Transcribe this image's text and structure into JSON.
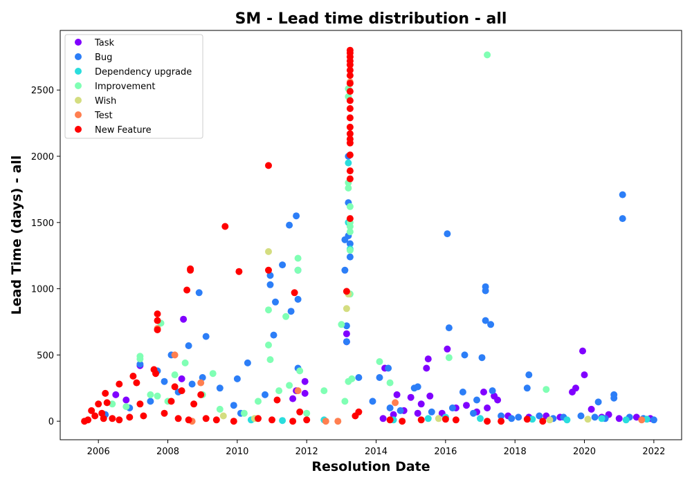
{
  "chart_data": {
    "type": "scatter",
    "title": "SM - Lead time distribution - all",
    "xlabel": "Resolution Date",
    "ylabel": "Lead Time (days) - all",
    "xlim": [
      2004.9,
      2022.8
    ],
    "ylim": [
      -140,
      2950
    ],
    "xticks": [
      2006,
      2008,
      2010,
      2012,
      2014,
      2016,
      2018,
      2020,
      2022
    ],
    "yticks": [
      0,
      500,
      1000,
      1500,
      2000,
      2500
    ],
    "grid": false,
    "legend_position": "top-left",
    "series": [
      {
        "name": "Task",
        "color": "#8000ff",
        "points": [
          [
            2006.5,
            200
          ],
          [
            2006.8,
            160
          ],
          [
            2007.2,
            420
          ],
          [
            2008.4,
            320
          ],
          [
            2008.45,
            770
          ],
          [
            2011.6,
            170
          ],
          [
            2011.7,
            230
          ],
          [
            2011.95,
            300
          ],
          [
            2011.95,
            210
          ],
          [
            2013.15,
            660
          ],
          [
            2013.15,
            600
          ],
          [
            2014.25,
            400
          ],
          [
            2014.6,
            200
          ],
          [
            2015.0,
            180
          ],
          [
            2015.3,
            130
          ],
          [
            2015.45,
            400
          ],
          [
            2015.5,
            470
          ],
          [
            2015.55,
            190
          ],
          [
            2016.05,
            545
          ],
          [
            2016.6,
            120
          ],
          [
            2017.1,
            220
          ],
          [
            2017.4,
            190
          ],
          [
            2017.5,
            160
          ],
          [
            2019.65,
            220
          ],
          [
            2019.75,
            250
          ],
          [
            2019.95,
            530
          ],
          [
            2020.0,
            350
          ],
          [
            2020.2,
            90
          ],
          [
            2014.5,
            50
          ],
          [
            2014.8,
            80
          ],
          [
            2015.9,
            60
          ],
          [
            2016.9,
            70
          ],
          [
            2017.8,
            40
          ],
          [
            2018.4,
            30
          ],
          [
            2018.9,
            40
          ],
          [
            2019.3,
            30
          ],
          [
            2020.5,
            30
          ],
          [
            2021.0,
            20
          ],
          [
            2021.5,
            30
          ],
          [
            2021.9,
            20
          ],
          [
            2016.3,
            100
          ],
          [
            2015.2,
            60
          ],
          [
            2014.2,
            20
          ],
          [
            2017.2,
            100
          ],
          [
            2020.7,
            50
          ]
        ]
      },
      {
        "name": "Bug",
        "color": "#2c7ef7",
        "points": [
          [
            2007.2,
            430
          ],
          [
            2007.7,
            380
          ],
          [
            2008.1,
            500
          ],
          [
            2008.6,
            570
          ],
          [
            2008.9,
            970
          ],
          [
            2009.1,
            640
          ],
          [
            2009.5,
            250
          ],
          [
            2010.0,
            320
          ],
          [
            2010.3,
            440
          ],
          [
            2010.95,
            1100
          ],
          [
            2010.95,
            1030
          ],
          [
            2011.05,
            650
          ],
          [
            2011.1,
            900
          ],
          [
            2011.3,
            1180
          ],
          [
            2011.5,
            1480
          ],
          [
            2011.55,
            830
          ],
          [
            2011.7,
            1550
          ],
          [
            2011.75,
            1140
          ],
          [
            2011.75,
            920
          ],
          [
            2011.75,
            400
          ],
          [
            2013.1,
            1370
          ],
          [
            2013.1,
            1140
          ],
          [
            2013.15,
            720
          ],
          [
            2013.15,
            600
          ],
          [
            2013.2,
            2000
          ],
          [
            2013.2,
            1650
          ],
          [
            2013.2,
            1400
          ],
          [
            2013.25,
            1240
          ],
          [
            2013.25,
            1340
          ],
          [
            2013.5,
            330
          ],
          [
            2014.1,
            330
          ],
          [
            2014.35,
            400
          ],
          [
            2015.1,
            250
          ],
          [
            2015.2,
            260
          ],
          [
            2016.05,
            1415
          ],
          [
            2016.1,
            705
          ],
          [
            2016.5,
            220
          ],
          [
            2016.55,
            500
          ],
          [
            2016.9,
            160
          ],
          [
            2017.05,
            480
          ],
          [
            2017.15,
            1015
          ],
          [
            2017.15,
            985
          ],
          [
            2017.15,
            760
          ],
          [
            2017.3,
            730
          ],
          [
            2017.35,
            230
          ],
          [
            2018.4,
            350
          ],
          [
            2018.35,
            250
          ],
          [
            2020.4,
            145
          ],
          [
            2020.85,
            200
          ],
          [
            2020.85,
            175
          ],
          [
            2021.1,
            1710
          ],
          [
            2021.1,
            1530
          ],
          [
            2013.9,
            150
          ],
          [
            2014.4,
            100
          ],
          [
            2014.7,
            80
          ],
          [
            2015.6,
            70
          ],
          [
            2016.2,
            100
          ],
          [
            2016.8,
            60
          ],
          [
            2017.6,
            40
          ],
          [
            2017.9,
            20
          ],
          [
            2018.1,
            30
          ],
          [
            2018.7,
            40
          ],
          [
            2019.1,
            20
          ],
          [
            2019.4,
            30
          ],
          [
            2019.9,
            40
          ],
          [
            2020.3,
            30
          ],
          [
            2020.6,
            20
          ],
          [
            2021.3,
            30
          ],
          [
            2021.7,
            20
          ],
          [
            2022.0,
            10
          ],
          [
            2010.8,
            200
          ],
          [
            2010.1,
            60
          ],
          [
            2009.9,
            120
          ],
          [
            2009.0,
            330
          ],
          [
            2008.7,
            280
          ],
          [
            2008.3,
            220
          ],
          [
            2007.9,
            300
          ],
          [
            2007.5,
            150
          ],
          [
            2006.9,
            100
          ],
          [
            2006.2,
            50
          ]
        ]
      },
      {
        "name": "Dependency upgrade",
        "color": "#2adddd",
        "points": [
          [
            2013.2,
            1950
          ],
          [
            2013.2,
            1500
          ],
          [
            2013.25,
            1300
          ],
          [
            2016.0,
            30
          ],
          [
            2017.0,
            20
          ],
          [
            2018.5,
            15
          ],
          [
            2019.5,
            10
          ],
          [
            2020.5,
            20
          ],
          [
            2021.2,
            10
          ],
          [
            2021.8,
            15
          ],
          [
            2015.5,
            20
          ],
          [
            2014.5,
            10
          ],
          [
            2012.5,
            10
          ],
          [
            2010.4,
            10
          ],
          [
            2011.3,
            5
          ]
        ]
      },
      {
        "name": "Improvement",
        "color": "#80ffb4",
        "points": [
          [
            2007.2,
            490
          ],
          [
            2007.2,
            470
          ],
          [
            2007.8,
            740
          ],
          [
            2008.2,
            350
          ],
          [
            2008.5,
            440
          ],
          [
            2009.3,
            360
          ],
          [
            2010.9,
            840
          ],
          [
            2010.9,
            575
          ],
          [
            2010.95,
            465
          ],
          [
            2011.4,
            790
          ],
          [
            2011.75,
            1230
          ],
          [
            2011.75,
            1140
          ],
          [
            2011.8,
            380
          ],
          [
            2012.5,
            230
          ],
          [
            2013.0,
            730
          ],
          [
            2013.1,
            150
          ],
          [
            2013.2,
            2510
          ],
          [
            2013.2,
            2450
          ],
          [
            2013.2,
            1800
          ],
          [
            2013.2,
            1760
          ],
          [
            2013.25,
            1620
          ],
          [
            2013.25,
            1500
          ],
          [
            2013.25,
            1470
          ],
          [
            2013.25,
            1430
          ],
          [
            2013.25,
            1290
          ],
          [
            2013.25,
            960
          ],
          [
            2013.2,
            300
          ],
          [
            2013.3,
            320
          ],
          [
            2014.1,
            450
          ],
          [
            2014.4,
            290
          ],
          [
            2016.1,
            480
          ],
          [
            2017.2,
            2765
          ],
          [
            2018.9,
            240
          ],
          [
            2006.4,
            130
          ],
          [
            2006.8,
            110
          ],
          [
            2007.5,
            200
          ],
          [
            2007.7,
            190
          ],
          [
            2008.0,
            150
          ],
          [
            2009.0,
            200
          ],
          [
            2009.5,
            90
          ],
          [
            2010.2,
            60
          ],
          [
            2010.6,
            150
          ],
          [
            2011.2,
            230
          ],
          [
            2011.5,
            270
          ],
          [
            2012.0,
            60
          ]
        ]
      },
      {
        "name": "Wish",
        "color": "#d4dd80",
        "points": [
          [
            2010.9,
            1280
          ],
          [
            2013.15,
            850
          ],
          [
            2013.2,
            960
          ],
          [
            2009.6,
            40
          ],
          [
            2010.5,
            20
          ],
          [
            2015.8,
            20
          ],
          [
            2019.0,
            10
          ],
          [
            2020.1,
            15
          ]
        ]
      },
      {
        "name": "Test",
        "color": "#ff7f50",
        "points": [
          [
            2007.7,
            700
          ],
          [
            2008.2,
            500
          ],
          [
            2008.95,
            290
          ],
          [
            2011.75,
            230
          ],
          [
            2013.25,
            2560
          ],
          [
            2014.55,
            140
          ],
          [
            2012.9,
            0
          ],
          [
            2012.55,
            0
          ],
          [
            2008.7,
            0
          ],
          [
            2021.65,
            10
          ]
        ]
      },
      {
        "name": "New Feature",
        "color": "#ff0000",
        "points": [
          [
            2007.7,
            810
          ],
          [
            2007.7,
            760
          ],
          [
            2007.7,
            690
          ],
          [
            2007.6,
            390
          ],
          [
            2007.65,
            360
          ],
          [
            2007.1,
            290
          ],
          [
            2007.0,
            340
          ],
          [
            2006.6,
            280
          ],
          [
            2006.2,
            210
          ],
          [
            2006.25,
            140
          ],
          [
            2008.55,
            990
          ],
          [
            2008.65,
            1140
          ],
          [
            2008.65,
            1150
          ],
          [
            2008.4,
            230
          ],
          [
            2008.2,
            260
          ],
          [
            2008.75,
            130
          ],
          [
            2008.95,
            200
          ],
          [
            2009.65,
            1470
          ],
          [
            2010.05,
            1130
          ],
          [
            2010.9,
            1930
          ],
          [
            2010.9,
            1140
          ],
          [
            2011.15,
            160
          ],
          [
            2011.65,
            970
          ],
          [
            2011.8,
            70
          ],
          [
            2013.15,
            980
          ],
          [
            2013.25,
            2800
          ],
          [
            2013.25,
            2780
          ],
          [
            2013.25,
            2750
          ],
          [
            2013.25,
            2720
          ],
          [
            2013.25,
            2690
          ],
          [
            2013.25,
            2650
          ],
          [
            2013.25,
            2610
          ],
          [
            2013.25,
            2550
          ],
          [
            2013.25,
            2490
          ],
          [
            2013.25,
            2420
          ],
          [
            2013.25,
            2360
          ],
          [
            2013.25,
            2290
          ],
          [
            2013.25,
            2220
          ],
          [
            2013.25,
            2170
          ],
          [
            2013.25,
            2130
          ],
          [
            2013.25,
            2100
          ],
          [
            2013.25,
            2010
          ],
          [
            2013.25,
            1890
          ],
          [
            2013.25,
            1830
          ],
          [
            2013.25,
            1530
          ],
          [
            2013.5,
            70
          ],
          [
            2013.4,
            40
          ],
          [
            2005.6,
            0
          ],
          [
            2005.8,
            80
          ],
          [
            2006.0,
            130
          ],
          [
            2006.1,
            60
          ],
          [
            2006.4,
            20
          ],
          [
            2006.6,
            10
          ],
          [
            2006.9,
            30
          ],
          [
            2007.2,
            130
          ],
          [
            2007.3,
            40
          ],
          [
            2007.9,
            60
          ],
          [
            2008.1,
            150
          ],
          [
            2008.3,
            20
          ],
          [
            2008.6,
            10
          ],
          [
            2009.1,
            20
          ],
          [
            2009.4,
            10
          ],
          [
            2009.9,
            0
          ],
          [
            2010.6,
            20
          ],
          [
            2011.0,
            10
          ],
          [
            2011.6,
            0
          ],
          [
            2012.0,
            10
          ],
          [
            2014.4,
            10
          ],
          [
            2014.75,
            0
          ],
          [
            2015.3,
            10
          ],
          [
            2016.0,
            15
          ],
          [
            2016.3,
            10
          ],
          [
            2017.2,
            0
          ],
          [
            2017.6,
            0
          ],
          [
            2018.35,
            15
          ],
          [
            2018.8,
            0
          ],
          [
            2005.7,
            10
          ],
          [
            2005.9,
            40
          ],
          [
            2006.15,
            20
          ]
        ]
      }
    ]
  }
}
